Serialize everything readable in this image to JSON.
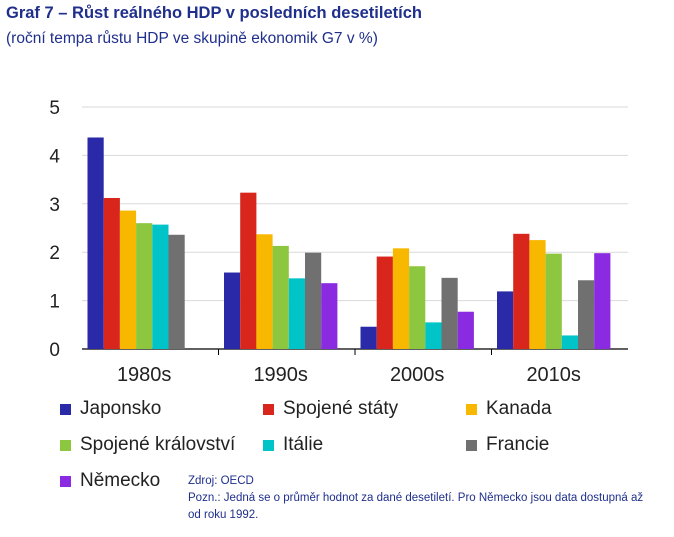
{
  "header": {
    "title": "Graf 7 – Růst reálného HDP v posledních desetiletích",
    "subtitle": "(roční tempa růstu HDP ve skupině ekonomik G7 v %)"
  },
  "chart_data": {
    "type": "bar",
    "categories": [
      "1980s",
      "1990s",
      "2000s",
      "2010s"
    ],
    "ylim": [
      0,
      5
    ],
    "yticks": [
      0,
      1,
      2,
      3,
      4,
      5
    ],
    "grid": true,
    "legend_position": "bottom",
    "series": [
      {
        "name": "Japonsko",
        "color": "#2a2aa8",
        "values": [
          4.37,
          1.58,
          0.46,
          1.19
        ]
      },
      {
        "name": "Spojené státy",
        "color": "#d9261c",
        "values": [
          3.12,
          3.23,
          1.91,
          2.38
        ]
      },
      {
        "name": "Kanada",
        "color": "#f8b800",
        "values": [
          2.86,
          2.37,
          2.08,
          2.25
        ]
      },
      {
        "name": "Spojené království",
        "color": "#8dc63f",
        "values": [
          2.6,
          2.13,
          1.71,
          1.97
        ]
      },
      {
        "name": "Itálie",
        "color": "#00c4c8",
        "values": [
          2.57,
          1.46,
          0.55,
          0.28
        ]
      },
      {
        "name": "Francie",
        "color": "#707070",
        "values": [
          2.36,
          1.99,
          1.47,
          1.42
        ]
      },
      {
        "name": "Německo",
        "color": "#8a2be2",
        "values": [
          null,
          1.36,
          0.77,
          1.98
        ]
      }
    ]
  },
  "notes": {
    "source": "Zdroj: OECD",
    "note_line1": "Pozn.: Jedná se o průměr hodnot za dané desetiletí. Pro Německo jsou data dostupná až",
    "note_line2": "od roku 1992."
  }
}
